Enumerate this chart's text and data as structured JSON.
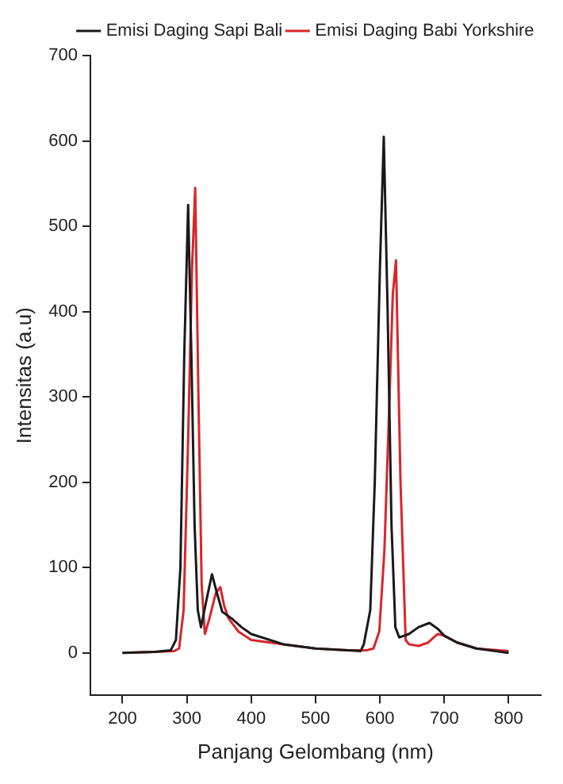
{
  "chart_data": {
    "type": "line",
    "xlabel": "Panjang Gelombang (nm)",
    "ylabel": "Intensitas (a.u)",
    "xlim": [
      150,
      850
    ],
    "xticks": [
      200,
      300,
      400,
      500,
      600,
      700,
      800
    ],
    "ylim": [
      -50,
      700
    ],
    "yticks": [
      0,
      100,
      200,
      300,
      400,
      500,
      600,
      700
    ],
    "grid": false,
    "legend": "top right",
    "marker": "none",
    "line_style": "solid",
    "series": [
      {
        "name": "Emisi Daging Sapi Bali",
        "color": "#1a1a1a",
        "x": [
          200,
          250,
          275,
          283,
          290,
          296,
          302,
          307,
          312,
          317,
          322,
          330,
          339,
          345,
          355,
          370,
          385,
          400,
          450,
          500,
          550,
          570,
          575,
          585,
          592,
          600,
          606,
          612,
          618,
          624,
          630,
          645,
          660,
          677,
          690,
          700,
          720,
          750,
          800
        ],
        "values": [
          0,
          1,
          3,
          15,
          100,
          350,
          525,
          350,
          150,
          50,
          30,
          60,
          92,
          75,
          48,
          40,
          30,
          22,
          10,
          5,
          3,
          2,
          10,
          50,
          200,
          450,
          605,
          400,
          150,
          30,
          18,
          22,
          30,
          35,
          28,
          20,
          12,
          5,
          0
        ]
      },
      {
        "name": "Emisi Daging Babi Yorkshire",
        "color": "#d9262b",
        "x": [
          200,
          250,
          280,
          288,
          295,
          302,
          308,
          313,
          318,
          323,
          328,
          335,
          345,
          352,
          358,
          365,
          380,
          400,
          450,
          500,
          550,
          580,
          590,
          599,
          607,
          615,
          620,
          625,
          632,
          640,
          645,
          660,
          675,
          690,
          700,
          720,
          750,
          800
        ],
        "values": [
          0,
          1,
          2,
          5,
          50,
          250,
          450,
          545,
          300,
          80,
          22,
          40,
          70,
          77,
          55,
          40,
          25,
          15,
          10,
          5,
          3,
          3,
          5,
          25,
          120,
          300,
          420,
          460,
          200,
          15,
          10,
          8,
          12,
          22,
          20,
          12,
          5,
          2
        ]
      }
    ]
  }
}
